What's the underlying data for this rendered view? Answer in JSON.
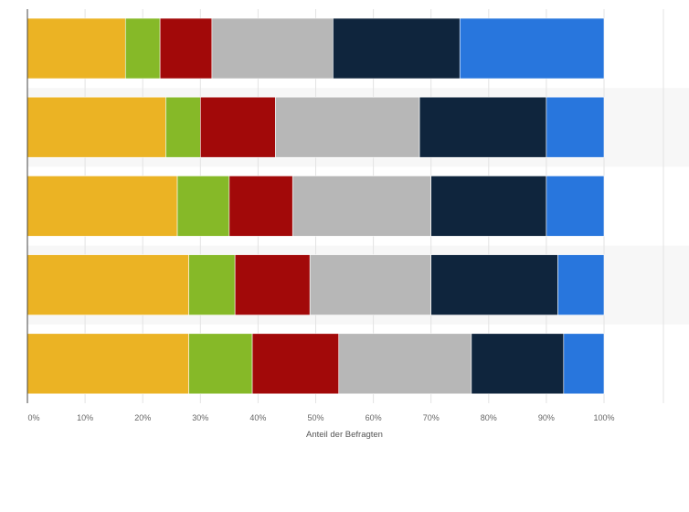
{
  "chart_data": {
    "type": "bar",
    "orientation": "horizontal",
    "stacked": true,
    "categories": [
      "",
      "",
      "",
      "",
      ""
    ],
    "series": [
      {
        "color": "#ebb324",
        "values": [
          17,
          24,
          26,
          28,
          28
        ]
      },
      {
        "color": "#86b928",
        "values": [
          6,
          6,
          9,
          8,
          11
        ]
      },
      {
        "color": "#a20909",
        "values": [
          9,
          13,
          11,
          13,
          15
        ]
      },
      {
        "color": "#b7b7b7",
        "values": [
          21,
          25,
          24,
          21,
          23
        ]
      },
      {
        "color": "#0f253d",
        "values": [
          22,
          22,
          20,
          22,
          16
        ]
      },
      {
        "color": "#2876dd",
        "values": [
          25,
          10,
          10,
          8,
          7
        ]
      }
    ],
    "x_ticks": [
      "0%",
      "10%",
      "20%",
      "30%",
      "40%",
      "50%",
      "60%",
      "70%",
      "80%",
      "90%",
      "100%"
    ],
    "xlim": [
      0,
      100
    ],
    "xlabel": "Anteil der Befragten",
    "grid": true,
    "legend": "none"
  }
}
